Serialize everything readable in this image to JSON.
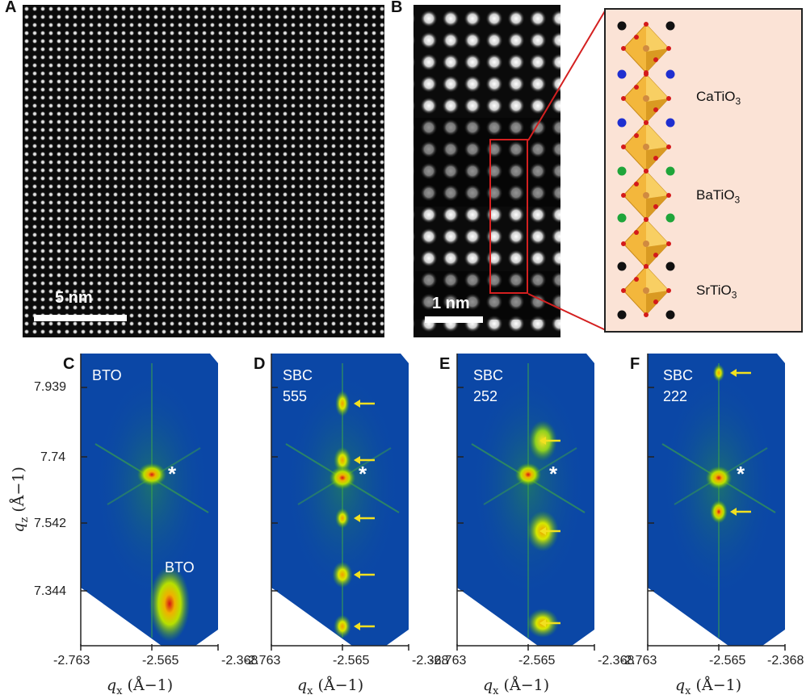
{
  "panels": {
    "A": {
      "letter": "A",
      "scale_label": "5 nm"
    },
    "B": {
      "letter": "B",
      "scale_label": "1 nm"
    },
    "schematic": {
      "layers": [
        {
          "name": "CaTiO",
          "sub": "3"
        },
        {
          "name": "BaTiO",
          "sub": "3"
        },
        {
          "name": "SrTiO",
          "sub": "3"
        }
      ],
      "colors": {
        "Ca": "#1f2fd0",
        "Ba": "#1fa53a",
        "Sr": "#111111",
        "O": "#d41a1a",
        "octahedron": "#f3b73c"
      }
    },
    "rsm": [
      {
        "letter": "C",
        "line1": "BTO",
        "line2": "",
        "substrate_label": "BTO",
        "star": "*"
      },
      {
        "letter": "D",
        "line1": "SBC",
        "line2": "555",
        "substrate_label": "",
        "star": "*"
      },
      {
        "letter": "E",
        "line1": "SBC",
        "line2": "252",
        "substrate_label": "",
        "star": "*"
      },
      {
        "letter": "F",
        "line1": "SBC",
        "line2": "222",
        "substrate_label": "",
        "star": "*"
      }
    ]
  },
  "axes": {
    "y_ticks": [
      "7.939",
      "7.74",
      "7.542",
      "7.344"
    ],
    "x_ticks": [
      "-2.763",
      "-2.565",
      "-2.368"
    ],
    "y_title": "q",
    "y_title_sub": "z",
    "y_title_unit": " (Å−1)",
    "x_title": "q",
    "x_title_sub": "x",
    "x_title_unit": " (Å−1)"
  }
}
